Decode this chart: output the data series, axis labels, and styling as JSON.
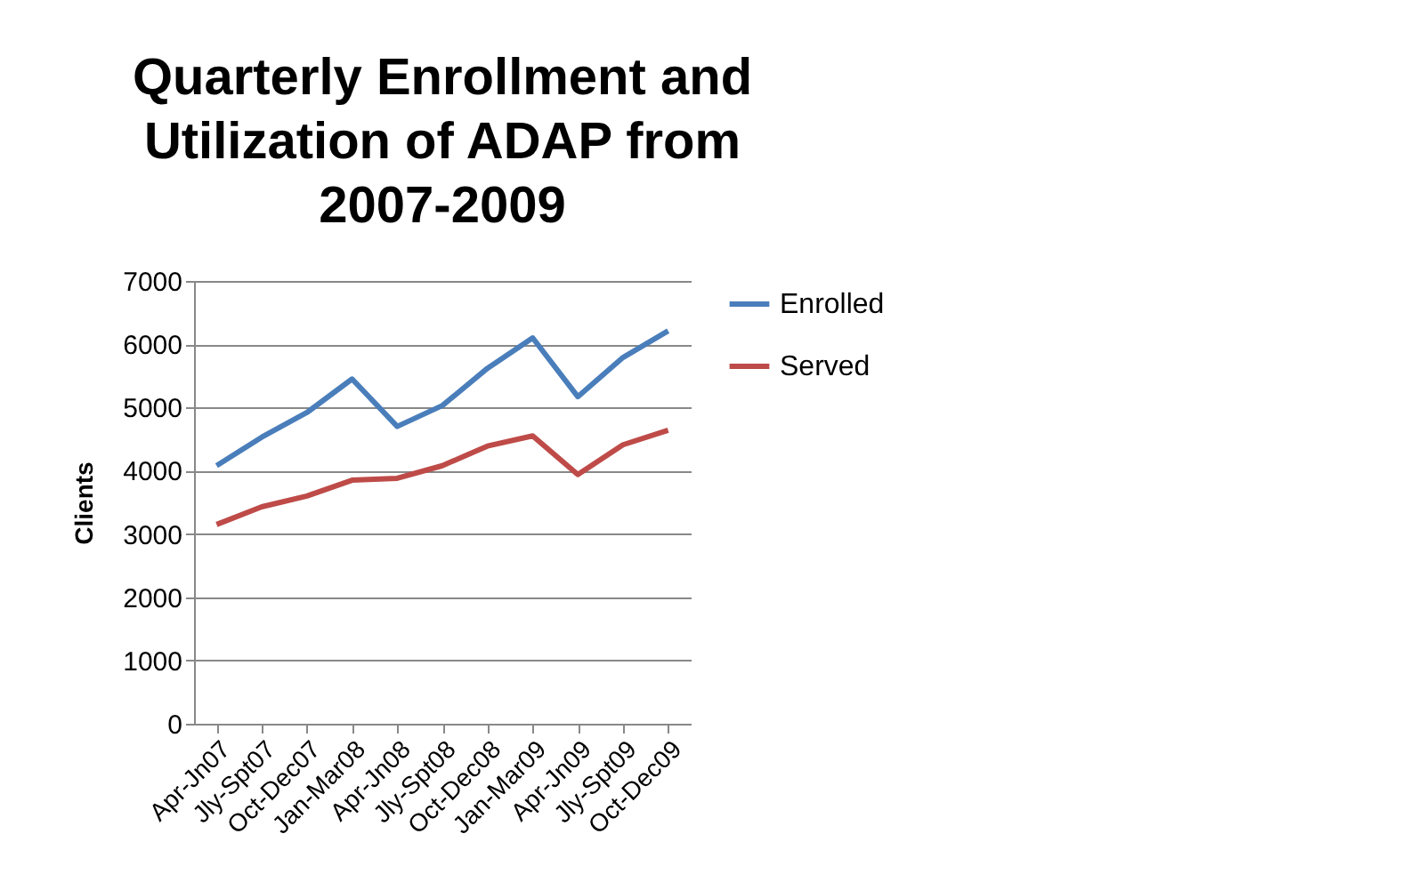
{
  "chart_data": {
    "type": "line",
    "title": "Quarterly Enrollment and Utilization of ADAP from 2007-2009",
    "ylabel": "Clients",
    "categories": [
      "Apr-Jn07",
      "Jly-Spt07",
      "Oct-Dec07",
      "Jan-Mar08",
      "Apr-Jn08",
      "Jly-Spt08",
      "Oct-Dec08",
      "Jan-Mar09",
      "Apr-Jn09",
      "Jly-Spt09",
      "Oct-Dec09"
    ],
    "series": [
      {
        "name": "Enrolled",
        "color": "#4a7ebb",
        "values": [
          4080,
          4530,
          4920,
          5450,
          4700,
          5030,
          5620,
          6100,
          5170,
          5790,
          6210
        ]
      },
      {
        "name": "Served",
        "color": "#be4b48",
        "values": [
          3150,
          3430,
          3600,
          3850,
          3880,
          4080,
          4390,
          4550,
          3940,
          4410,
          4640
        ]
      }
    ],
    "ylim": [
      0,
      7000
    ],
    "yticks": [
      0,
      1000,
      2000,
      3000,
      4000,
      5000,
      6000,
      7000
    ],
    "grid": "y",
    "legend": "right",
    "marker": "none",
    "line_style": "solid"
  }
}
